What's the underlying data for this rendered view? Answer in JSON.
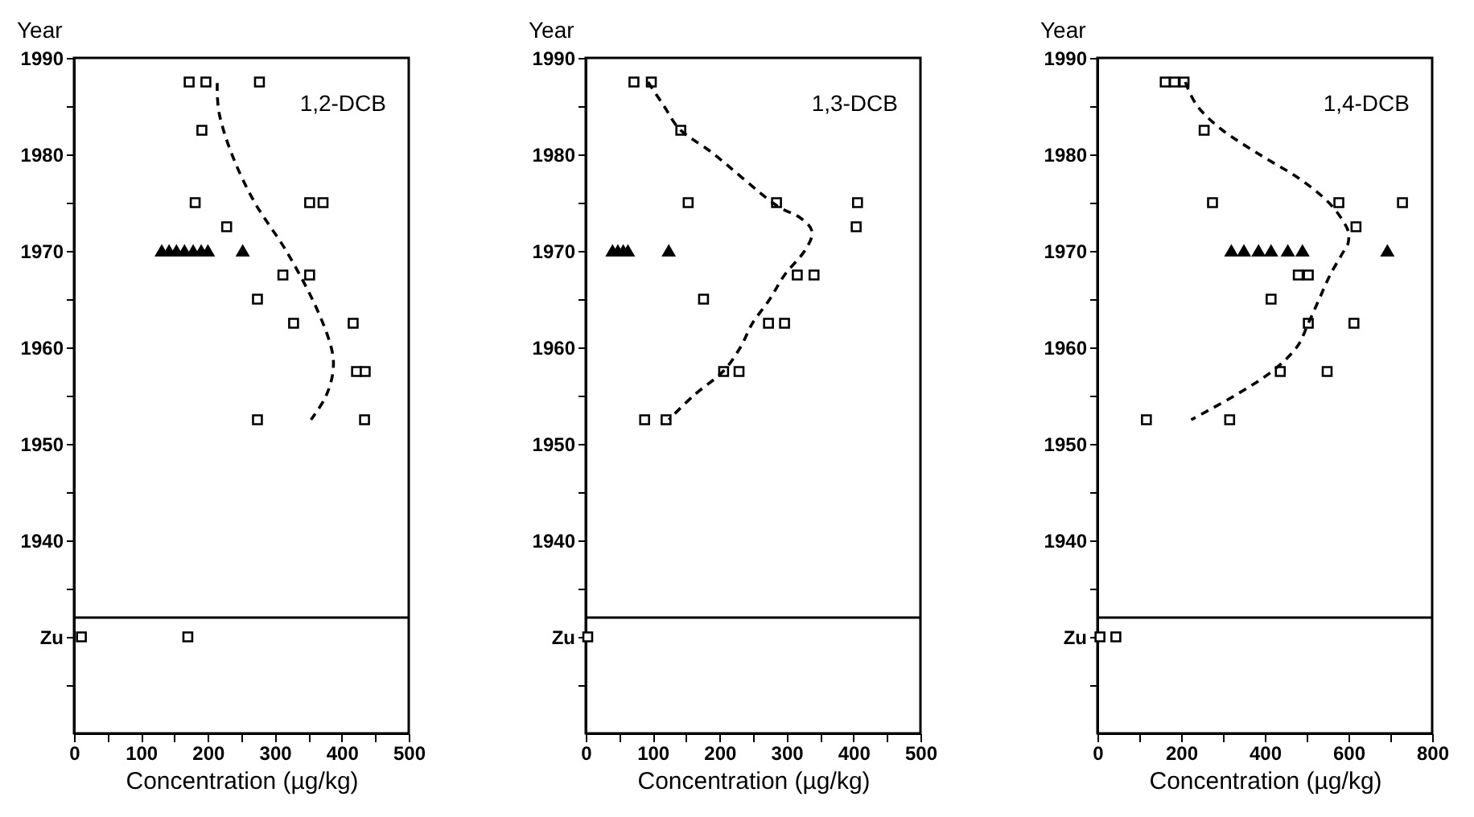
{
  "chart_data": [
    {
      "type": "scatter",
      "annotations": [
        "1,2-DCB"
      ],
      "xlabel": "Concentration (µg/kg)",
      "ylabel": "Year",
      "xlim": [
        0,
        500
      ],
      "ylim": [
        1920,
        1990
      ],
      "xticks": [
        0,
        {
          "value": 50,
          "label": null
        },
        100,
        {
          "value": 150,
          "label": null
        },
        200,
        {
          "value": 250,
          "label": null
        },
        300,
        {
          "value": 350,
          "label": null
        },
        400,
        {
          "value": 450,
          "label": null
        },
        500
      ],
      "yticks": [
        {
          "value": 1925,
          "label": null
        },
        {
          "value": 1930,
          "label": "Zu"
        },
        {
          "value": 1935,
          "label": null
        },
        1940,
        {
          "value": 1945,
          "label": null
        },
        1950,
        {
          "value": 1955,
          "label": null
        },
        1960,
        {
          "value": 1965,
          "label": null
        },
        1970,
        {
          "value": 1975,
          "label": null
        },
        1980,
        {
          "value": 1985,
          "label": null
        },
        1990
      ],
      "ref_lines": [
        {
          "axis": "y",
          "value": 1932,
          "color": "#000000"
        }
      ],
      "series": [
        {
          "type": "scatter",
          "marker": "square",
          "color": "#000000",
          "x": [
            172,
            197,
            277,
            191,
            181,
            352,
            372,
            228,
            312,
            352,
            274,
            328,
            417,
            422,
            435,
            274,
            434,
            11,
            170
          ],
          "values": [
            1987.5,
            1987.5,
            1987.5,
            1982.5,
            1975,
            1975,
            1975,
            1972.5,
            1967.5,
            1967.5,
            1965,
            1962.5,
            1962.5,
            1957.5,
            1957.5,
            1952.5,
            1952.5,
            1930,
            1930
          ]
        },
        {
          "type": "scatter",
          "marker": "triangle",
          "color": "#000000",
          "x": [
            131,
            142,
            153,
            165,
            178,
            190,
            200,
            252
          ],
          "values": [
            1970,
            1970,
            1970,
            1970,
            1970,
            1970,
            1970,
            1970
          ]
        },
        {
          "type": "line",
          "line_style": "dashed",
          "marker": "none",
          "color": "#000000",
          "x": [
            214,
            217,
            237,
            270,
            317,
            358,
            383,
            387,
            376,
            354
          ],
          "values": [
            1987.4,
            1984.2,
            1979.8,
            1975,
            1970,
            1964.7,
            1960.3,
            1957.6,
            1954.9,
            1952.5
          ]
        }
      ]
    },
    {
      "type": "scatter",
      "annotations": [
        "1,3-DCB"
      ],
      "xlabel": "Concentration (µg/kg)",
      "ylabel": "Year",
      "xlim": [
        0,
        500
      ],
      "ylim": [
        1920,
        1990
      ],
      "xticks": [
        0,
        {
          "value": 50,
          "label": null
        },
        100,
        {
          "value": 150,
          "label": null
        },
        200,
        {
          "value": 250,
          "label": null
        },
        300,
        {
          "value": 350,
          "label": null
        },
        400,
        {
          "value": 450,
          "label": null
        },
        500
      ],
      "yticks": [
        {
          "value": 1925,
          "label": null
        },
        {
          "value": 1930,
          "label": "Zu"
        },
        {
          "value": 1935,
          "label": null
        },
        1940,
        {
          "value": 1945,
          "label": null
        },
        1950,
        {
          "value": 1955,
          "label": null
        },
        1960,
        {
          "value": 1965,
          "label": null
        },
        1970,
        {
          "value": 1975,
          "label": null
        },
        1980,
        {
          "value": 1985,
          "label": null
        },
        1990
      ],
      "ref_lines": [
        {
          "axis": "y",
          "value": 1932,
          "color": "#000000"
        }
      ],
      "series": [
        {
          "type": "scatter",
          "marker": "square",
          "color": "#000000",
          "x": [
            72,
            98,
            142,
            153,
            285,
            406,
            404,
            316,
            341,
            176,
            273,
            297,
            206,
            229,
            88,
            120,
            3
          ],
          "values": [
            1987.5,
            1987.5,
            1982.5,
            1975,
            1975,
            1975,
            1972.5,
            1967.5,
            1967.5,
            1965,
            1962.5,
            1962.5,
            1957.5,
            1957.5,
            1952.5,
            1952.5,
            1930
          ]
        },
        {
          "type": "scatter",
          "marker": "triangle",
          "color": "#000000",
          "x": [
            40,
            48,
            56,
            63,
            124
          ],
          "values": [
            1970,
            1970,
            1970,
            1970,
            1970
          ]
        },
        {
          "type": "line",
          "line_style": "dashed",
          "marker": "none",
          "color": "#000000",
          "x": [
            93,
            117,
            142,
            192,
            279,
            319,
            338,
            327,
            297,
            275,
            249,
            231,
            205,
            161,
            124
          ],
          "values": [
            1987.5,
            1985,
            1982.5,
            1980,
            1975,
            1973.5,
            1972,
            1970,
            1967.5,
            1965,
            1962.5,
            1960,
            1957.5,
            1955,
            1952.5
          ]
        }
      ]
    },
    {
      "type": "scatter",
      "annotations": [
        "1,4-DCB"
      ],
      "xlabel": "Concentration (µg/kg)",
      "ylabel": "Year",
      "xlim": [
        0,
        800
      ],
      "ylim": [
        1920,
        1990
      ],
      "xticks": [
        0,
        {
          "value": 100,
          "label": null
        },
        200,
        {
          "value": 300,
          "label": null
        },
        400,
        {
          "value": 500,
          "label": null
        },
        600,
        {
          "value": 700,
          "label": null
        },
        800
      ],
      "yticks": [
        {
          "value": 1925,
          "label": null
        },
        {
          "value": 1930,
          "label": "Zu"
        },
        {
          "value": 1935,
          "label": null
        },
        1940,
        {
          "value": 1945,
          "label": null
        },
        1950,
        {
          "value": 1955,
          "label": null
        },
        1960,
        {
          "value": 1965,
          "label": null
        },
        1970,
        {
          "value": 1975,
          "label": null
        },
        1980,
        {
          "value": 1985,
          "label": null
        },
        1990
      ],
      "ref_lines": [
        {
          "axis": "y",
          "value": 1932,
          "color": "#000000"
        }
      ],
      "series": [
        {
          "type": "scatter",
          "marker": "square",
          "color": "#000000",
          "x": [
            162,
            184,
            207,
            255,
            275,
            577,
            729,
            618,
            480,
            504,
            415,
            504,
            613,
            437,
            549,
            117,
            316,
            6,
            44
          ],
          "values": [
            1987.5,
            1987.5,
            1987.5,
            1982.5,
            1975,
            1975,
            1975,
            1972.5,
            1967.5,
            1967.5,
            1965,
            1962.5,
            1962.5,
            1957.5,
            1957.5,
            1952.5,
            1952.5,
            1930,
            1930
          ]
        },
        {
          "type": "scatter",
          "marker": "triangle",
          "color": "#000000",
          "x": [
            320,
            350,
            385,
            415,
            455,
            490,
            693
          ],
          "values": [
            1970,
            1970,
            1970,
            1970,
            1970,
            1970,
            1970
          ]
        },
        {
          "type": "line",
          "line_style": "dashed",
          "marker": "none",
          "color": "#000000",
          "x": [
            210,
            239,
            299,
            387,
            482,
            553,
            595,
            600,
            589,
            556,
            530,
            504,
            476,
            417,
            328,
            224
          ],
          "values": [
            1987.5,
            1985,
            1982.5,
            1980,
            1977.5,
            1975,
            1972.5,
            1971,
            1970,
            1967.5,
            1965,
            1962.5,
            1960,
            1957.5,
            1955,
            1952.5
          ]
        }
      ]
    }
  ]
}
